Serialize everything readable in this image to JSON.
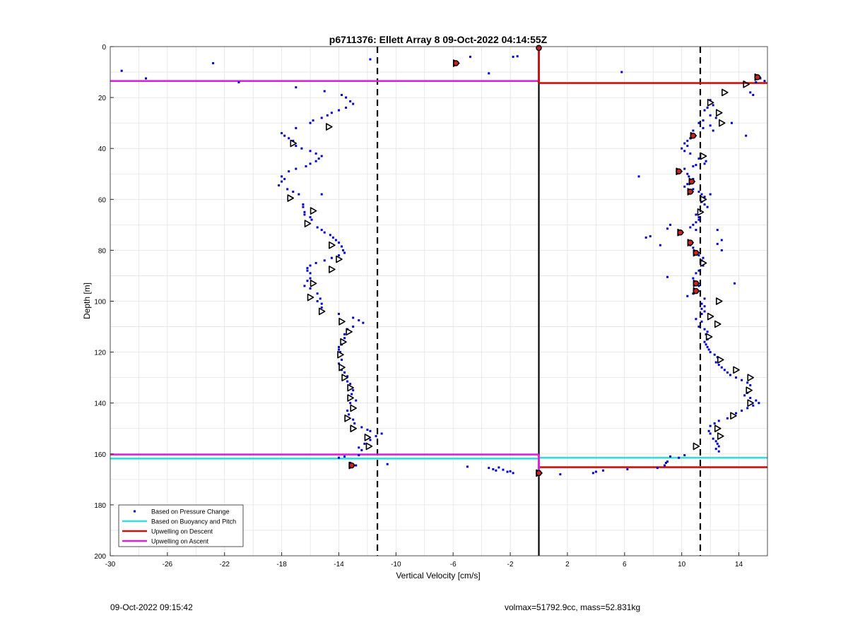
{
  "chart_data": {
    "type": "scatter",
    "title": "p6711376: Ellett Array 8 09-Oct-2022 04:14:55Z",
    "xlabel": "Vertical Velocity [cm/s]",
    "ylabel": "Depth [m]",
    "xlim": [
      -30,
      16
    ],
    "ylim": [
      0,
      200
    ],
    "y_reversed": true,
    "grid": true,
    "legend_placement": "bottom-left",
    "x_ticks": [
      -30,
      -26,
      -22,
      -18,
      -14,
      -10,
      -6,
      -2,
      2,
      6,
      10,
      14
    ],
    "y_ticks": [
      0,
      20,
      40,
      60,
      80,
      100,
      120,
      140,
      160,
      180,
      200
    ],
    "colors": {
      "pressure": "#0000cc",
      "buoyancy": "#33dddd",
      "descent": "#cc1111",
      "ascent": "#dd22dd",
      "marker_fill": "#cc2222"
    },
    "legend": [
      {
        "label": "Based on Pressure Change",
        "style": "dot",
        "color": "#0000cc"
      },
      {
        "label": "Based on Buoyancy and Pitch",
        "style": "line",
        "color": "#33dddd"
      },
      {
        "label": "Upwelling on Descent",
        "style": "line",
        "color": "#cc1111"
      },
      {
        "label": "Upwelling on Ascent",
        "style": "line",
        "color": "#dd22dd"
      }
    ],
    "vertical_lines": [
      {
        "x": -11.3,
        "style": "dashed"
      },
      {
        "x": 0,
        "style": "solid"
      },
      {
        "x": 11.3,
        "style": "dashed"
      }
    ],
    "horizontal_lines": [
      {
        "series": "ascent",
        "y": 13.5,
        "x_from": -30,
        "x_to": 0
      },
      {
        "series": "descent",
        "y": 14.3,
        "x_from": 0,
        "x_to": 16
      },
      {
        "series": "buoyancy",
        "y": 161.8,
        "x_from": -30,
        "x_to": 0
      },
      {
        "series": "ascent",
        "y": 160.2,
        "x_from": -30,
        "x_to": 0
      },
      {
        "series": "buoyancy",
        "y": 161.5,
        "x_from": 0,
        "x_to": 16
      },
      {
        "series": "descent",
        "y": 165.2,
        "x_from": 0,
        "x_to": 16
      }
    ],
    "vertical_segments": [
      {
        "series": "descent",
        "x": 0,
        "y_from": 0,
        "y_to": 14.3
      },
      {
        "series": "ascent",
        "x": 0,
        "y_from": 160.2,
        "y_to": 167.5
      }
    ],
    "descent_profile": [
      [
        15.3,
        12
      ],
      [
        14.5,
        14.8
      ],
      [
        13.0,
        18
      ],
      [
        12.0,
        22
      ],
      [
        12.6,
        26
      ],
      [
        12.8,
        30
      ],
      [
        10.8,
        35
      ],
      [
        11.5,
        43
      ],
      [
        9.8,
        49
      ],
      [
        10.7,
        53
      ],
      [
        11.5,
        60
      ],
      [
        10.6,
        57
      ],
      [
        11.3,
        65
      ],
      [
        9.9,
        73
      ],
      [
        10.6,
        77
      ],
      [
        11.0,
        81
      ],
      [
        11.5,
        85
      ],
      [
        11.0,
        93
      ],
      [
        11.0,
        96
      ],
      [
        12.6,
        100
      ],
      [
        12.0,
        106
      ],
      [
        12.5,
        109
      ],
      [
        11.9,
        114
      ],
      [
        12.7,
        123
      ],
      [
        13.8,
        127
      ],
      [
        14.8,
        130
      ],
      [
        14.7,
        135
      ],
      [
        14.8,
        140
      ],
      [
        13.6,
        145
      ],
      [
        12.5,
        150
      ],
      [
        12.7,
        153
      ],
      [
        11.0,
        157
      ],
      [
        0,
        167.5
      ]
    ],
    "ascent_profile": [
      [
        -5.8,
        6.5
      ],
      [
        -14.7,
        31.5
      ],
      [
        -17.2,
        38
      ],
      [
        -17.4,
        59.5
      ],
      [
        -15.8,
        64.5
      ],
      [
        -16.2,
        69.5
      ],
      [
        -14.5,
        78
      ],
      [
        -14.0,
        83.5
      ],
      [
        -14.5,
        87.5
      ],
      [
        -15.8,
        93
      ],
      [
        -16.0,
        98.5
      ],
      [
        -15.2,
        104
      ],
      [
        -13.8,
        108
      ],
      [
        -13.3,
        112
      ],
      [
        -13.7,
        116
      ],
      [
        -13.9,
        121
      ],
      [
        -13.8,
        126
      ],
      [
        -13.6,
        130
      ],
      [
        -13.2,
        134
      ],
      [
        -13.2,
        138
      ],
      [
        -13.0,
        142
      ],
      [
        -13.4,
        146
      ],
      [
        -13.0,
        150
      ],
      [
        -12.0,
        153.5
      ],
      [
        -11.9,
        157
      ],
      [
        -13.1,
        164.5
      ]
    ],
    "descent_star_markers": [
      [
        15.3,
        12
      ],
      [
        10.8,
        35
      ],
      [
        9.8,
        49
      ],
      [
        10.7,
        53
      ],
      [
        10.6,
        57
      ],
      [
        9.9,
        73
      ],
      [
        10.6,
        77
      ],
      [
        11.0,
        81
      ],
      [
        11.0,
        93
      ],
      [
        11.0,
        96
      ],
      [
        0,
        167.5
      ]
    ],
    "ascent_star_markers": [
      [
        -5.8,
        6.5
      ],
      [
        -13.1,
        164.5
      ],
      [
        0,
        0.5
      ]
    ],
    "pressure_points": [
      [
        -29.2,
        9.5
      ],
      [
        -27.5,
        12.5
      ],
      [
        -22.8,
        6.5
      ],
      [
        -21.0,
        14
      ],
      [
        -11.8,
        5
      ],
      [
        -4.8,
        4
      ],
      [
        -3.5,
        10.5
      ],
      [
        -1.8,
        4
      ],
      [
        -1.5,
        3.8
      ],
      [
        5.8,
        10
      ],
      [
        -17.0,
        16
      ],
      [
        -15.0,
        17.5
      ],
      [
        -13.8,
        19
      ],
      [
        -13.5,
        20
      ],
      [
        -13.2,
        21.5
      ],
      [
        -13.0,
        22.5
      ],
      [
        -13.5,
        24
      ],
      [
        -14.0,
        25
      ],
      [
        -14.5,
        26
      ],
      [
        -14.8,
        27
      ],
      [
        -15.2,
        28
      ],
      [
        -15.8,
        29
      ],
      [
        -16.0,
        30
      ],
      [
        -17.0,
        32
      ],
      [
        -18.0,
        34
      ],
      [
        -17.8,
        35
      ],
      [
        -17.5,
        36
      ],
      [
        -17.2,
        37
      ],
      [
        -17.0,
        39
      ],
      [
        -16.6,
        40
      ],
      [
        -16.0,
        41
      ],
      [
        -15.6,
        42
      ],
      [
        -15.2,
        43
      ],
      [
        -15.4,
        44
      ],
      [
        -15.6,
        45
      ],
      [
        -16.0,
        46
      ],
      [
        -16.3,
        47
      ],
      [
        -17.0,
        48
      ],
      [
        -17.5,
        49
      ],
      [
        -18.0,
        51
      ],
      [
        -17.8,
        52
      ],
      [
        -18.0,
        53
      ],
      [
        -18.2,
        54.5
      ],
      [
        -17.6,
        56
      ],
      [
        -17.2,
        57
      ],
      [
        -16.8,
        58
      ],
      [
        -15.2,
        58
      ],
      [
        -16.5,
        62
      ],
      [
        -16.5,
        63
      ],
      [
        -16.4,
        65
      ],
      [
        -16.4,
        66
      ],
      [
        -16.0,
        67
      ],
      [
        -15.9,
        68
      ],
      [
        -15.5,
        71
      ],
      [
        -15.2,
        72
      ],
      [
        -15.0,
        73
      ],
      [
        -14.6,
        74
      ],
      [
        -14.4,
        75
      ],
      [
        -14.2,
        76
      ],
      [
        -14.0,
        77
      ],
      [
        -13.8,
        78.5
      ],
      [
        -13.7,
        80
      ],
      [
        -13.6,
        81
      ],
      [
        -14.0,
        82
      ],
      [
        -14.5,
        83
      ],
      [
        -15.0,
        84
      ],
      [
        -15.6,
        85
      ],
      [
        -16.0,
        86
      ],
      [
        -16.2,
        87
      ],
      [
        -16.2,
        88
      ],
      [
        -16.0,
        89
      ],
      [
        -16.0,
        91
      ],
      [
        -16.2,
        92
      ],
      [
        -16.4,
        94
      ],
      [
        -16.0,
        95
      ],
      [
        -15.5,
        97
      ],
      [
        -15.3,
        99
      ],
      [
        -15.5,
        100
      ],
      [
        -15.2,
        101
      ],
      [
        -15.2,
        102.5
      ],
      [
        -14.0,
        105
      ],
      [
        -13.0,
        106.5
      ],
      [
        -12.6,
        107.5
      ],
      [
        -12.3,
        108.5
      ],
      [
        -13.0,
        110
      ],
      [
        -13.4,
        111
      ],
      [
        -13.6,
        113
      ],
      [
        -13.6,
        114.5
      ],
      [
        -13.8,
        117
      ],
      [
        -14.0,
        118
      ],
      [
        -14.0,
        119
      ],
      [
        -13.9,
        120
      ],
      [
        -13.8,
        123
      ],
      [
        -14.0,
        124.5
      ],
      [
        -13.8,
        127
      ],
      [
        -13.6,
        128
      ],
      [
        -13.4,
        129.5
      ],
      [
        -13.4,
        131.5
      ],
      [
        -13.2,
        132.5
      ],
      [
        -13.0,
        135
      ],
      [
        -13.1,
        136.5
      ],
      [
        -12.8,
        139
      ],
      [
        -13.2,
        140
      ],
      [
        -13.4,
        143
      ],
      [
        -13.3,
        144.5
      ],
      [
        -13.0,
        146.5
      ],
      [
        -12.9,
        148
      ],
      [
        -12.4,
        149.5
      ],
      [
        -12.0,
        150.5
      ],
      [
        -11.8,
        151
      ],
      [
        -11.0,
        152
      ],
      [
        -11.4,
        153
      ],
      [
        -11.8,
        154.5
      ],
      [
        -12.2,
        156
      ],
      [
        -12.6,
        157.5
      ],
      [
        -12.4,
        158.5
      ],
      [
        -12.6,
        160.5
      ],
      [
        -13.6,
        161
      ],
      [
        -14.0,
        161.5
      ],
      [
        -13.2,
        163.5
      ],
      [
        -12.8,
        164.5
      ],
      [
        -10.6,
        164
      ],
      [
        -5.0,
        165
      ],
      [
        -3.5,
        165.5
      ],
      [
        -3.2,
        166
      ],
      [
        -3.0,
        166.5
      ],
      [
        -2.8,
        165.3
      ],
      [
        -2.5,
        166.2
      ],
      [
        -2.2,
        167
      ],
      [
        -2.0,
        166.8
      ],
      [
        -1.8,
        167.5
      ],
      [
        1.5,
        168
      ],
      [
        3.8,
        167.5
      ],
      [
        4.0,
        167
      ],
      [
        4.5,
        166.5
      ],
      [
        6.2,
        166
      ],
      [
        8.3,
        165.5
      ],
      [
        8.8,
        164.5
      ],
      [
        8.9,
        163.5
      ],
      [
        9.0,
        163
      ],
      [
        9.2,
        161
      ],
      [
        9.8,
        161.5
      ],
      [
        10.2,
        160.5
      ],
      [
        15.5,
        12.5
      ],
      [
        15.8,
        13.5
      ],
      [
        15.2,
        14
      ],
      [
        15.0,
        19
      ],
      [
        14.8,
        18
      ],
      [
        12.0,
        21
      ],
      [
        12.2,
        23
      ],
      [
        11.8,
        24
      ],
      [
        11.6,
        25
      ],
      [
        12.0,
        27
      ],
      [
        12.4,
        28
      ],
      [
        11.5,
        29
      ],
      [
        11.2,
        30
      ],
      [
        12.0,
        31
      ],
      [
        11.5,
        32
      ],
      [
        10.8,
        33
      ],
      [
        12.2,
        33
      ],
      [
        13.5,
        30
      ],
      [
        14.5,
        35
      ],
      [
        10.6,
        36
      ],
      [
        10.4,
        37
      ],
      [
        10.2,
        38
      ],
      [
        10.4,
        39
      ],
      [
        10.0,
        40
      ],
      [
        10.2,
        41
      ],
      [
        10.6,
        42
      ],
      [
        11.2,
        44
      ],
      [
        11.7,
        45
      ],
      [
        11.6,
        46
      ],
      [
        11.0,
        46.5
      ],
      [
        10.8,
        47
      ],
      [
        10.2,
        48
      ],
      [
        10.4,
        50
      ],
      [
        10.5,
        51
      ],
      [
        10.8,
        52
      ],
      [
        7.0,
        51
      ],
      [
        10.4,
        54
      ],
      [
        10.2,
        55
      ],
      [
        10.8,
        56
      ],
      [
        11.2,
        57
      ],
      [
        11.4,
        58
      ],
      [
        11.6,
        59
      ],
      [
        12.0,
        58
      ],
      [
        11.4,
        61
      ],
      [
        11.6,
        62
      ],
      [
        11.8,
        63
      ],
      [
        11.0,
        66
      ],
      [
        11.2,
        67
      ],
      [
        11.2,
        68
      ],
      [
        11.0,
        69
      ],
      [
        10.8,
        70
      ],
      [
        9.2,
        70
      ],
      [
        9.0,
        71.5
      ],
      [
        10.6,
        71
      ],
      [
        11.0,
        72
      ],
      [
        12.5,
        72
      ],
      [
        12.8,
        76
      ],
      [
        12.5,
        77.5
      ],
      [
        12.8,
        80
      ],
      [
        7.5,
        75
      ],
      [
        7.8,
        74.5
      ],
      [
        8.5,
        78
      ],
      [
        10.6,
        78
      ],
      [
        10.8,
        79
      ],
      [
        11.2,
        82
      ],
      [
        11.5,
        83
      ],
      [
        11.4,
        84
      ],
      [
        11.5,
        86
      ],
      [
        11.2,
        88
      ],
      [
        11.0,
        89
      ],
      [
        9.0,
        90.5
      ],
      [
        10.8,
        91
      ],
      [
        11.2,
        94
      ],
      [
        13.7,
        93
      ],
      [
        10.8,
        97
      ],
      [
        10.4,
        98
      ],
      [
        11.6,
        99
      ],
      [
        11.4,
        101
      ],
      [
        11.6,
        102
      ],
      [
        11.4,
        103
      ],
      [
        11.6,
        104
      ],
      [
        11.4,
        105
      ],
      [
        11.0,
        107
      ],
      [
        11.4,
        108
      ],
      [
        11.2,
        110
      ],
      [
        11.6,
        111
      ],
      [
        11.8,
        112
      ],
      [
        11.7,
        113
      ],
      [
        11.8,
        115
      ],
      [
        11.6,
        116
      ],
      [
        11.7,
        117
      ],
      [
        11.8,
        118
      ],
      [
        11.9,
        119
      ],
      [
        12.0,
        120
      ],
      [
        12.3,
        121
      ],
      [
        12.5,
        122
      ],
      [
        12.4,
        124
      ],
      [
        12.6,
        125
      ],
      [
        12.8,
        126
      ],
      [
        13.0,
        127
      ],
      [
        13.2,
        128
      ],
      [
        13.4,
        129
      ],
      [
        13.8,
        130
      ],
      [
        14.2,
        131
      ],
      [
        14.6,
        132
      ],
      [
        14.8,
        133
      ],
      [
        14.6,
        136
      ],
      [
        14.4,
        137
      ],
      [
        14.8,
        138
      ],
      [
        15.2,
        139
      ],
      [
        15.4,
        140
      ],
      [
        15.0,
        141
      ],
      [
        14.6,
        142
      ],
      [
        14.2,
        143
      ],
      [
        13.8,
        144
      ],
      [
        13.2,
        146
      ],
      [
        12.6,
        147
      ],
      [
        12.3,
        148
      ],
      [
        12.0,
        149
      ],
      [
        11.9,
        151
      ],
      [
        12.0,
        152
      ],
      [
        12.2,
        154
      ],
      [
        12.4,
        155
      ],
      [
        12.5,
        156
      ],
      [
        12.6,
        157
      ],
      [
        12.4,
        158
      ],
      [
        12.6,
        159
      ]
    ]
  },
  "footer": {
    "left": "09-Oct-2022 09:15:42",
    "right": "volmax=51792.9cc, mass=52.831kg"
  }
}
